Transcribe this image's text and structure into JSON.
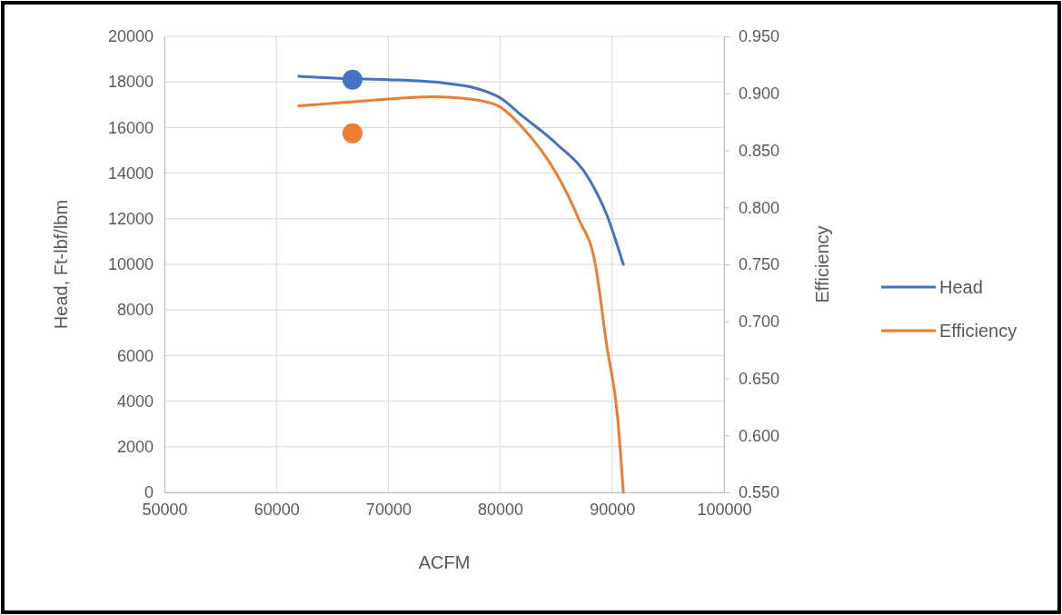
{
  "chart_data": {
    "type": "line",
    "xlabel": "ACFM",
    "ylabel": "Head, Ft-lbf/lbm",
    "y2label": "Efficiency",
    "xlim": [
      50000,
      100000
    ],
    "xticks": [
      50000,
      60000,
      70000,
      80000,
      90000,
      100000
    ],
    "ylim": [
      0,
      20000
    ],
    "yticks": [
      0,
      2000,
      4000,
      6000,
      8000,
      10000,
      12000,
      14000,
      16000,
      18000,
      20000
    ],
    "y2lim": [
      0.55,
      0.95
    ],
    "y2ticks": [
      {
        "value": 0.55,
        "label": "0.550"
      },
      {
        "value": 0.6,
        "label": "0.600"
      },
      {
        "value": 0.65,
        "label": "0.650"
      },
      {
        "value": 0.7,
        "label": "0.700"
      },
      {
        "value": 0.75,
        "label": "0.750"
      },
      {
        "value": 0.8,
        "label": "0.800"
      },
      {
        "value": 0.85,
        "label": "0.850"
      },
      {
        "value": 0.9,
        "label": "0.900"
      },
      {
        "value": 0.95,
        "label": "0.950"
      }
    ],
    "grid": true,
    "legend": "right",
    "marker": "none",
    "line_style": "solid",
    "series": [
      {
        "name": "Head",
        "color": "#4472c4",
        "x": [
          62000,
          66000,
          70000,
          75000,
          78000,
          80000,
          82000,
          85000,
          88000,
          89500,
          91000
        ],
        "values": [
          18250,
          18150,
          18100,
          17950,
          17700,
          17300,
          16500,
          15300,
          13700,
          12200,
          10000
        ]
      },
      {
        "name": "Efficiency",
        "color": "#ed7d31",
        "axis": "y2",
        "x": [
          62000,
          66000,
          70000,
          74000,
          78000,
          80000,
          82000,
          85000,
          87000,
          88500,
          89500,
          90500,
          91000
        ],
        "values": [
          0.889,
          0.892,
          0.895,
          0.897,
          0.894,
          0.888,
          0.87,
          0.83,
          0.79,
          0.75,
          0.68,
          0.615,
          0.55
        ]
      },
      {
        "type": "scatter",
        "color": "#4472c4",
        "marker": "circle",
        "x": [
          66800
        ],
        "values": [
          18100
        ]
      },
      {
        "type": "scatter",
        "color": "#ed7d31",
        "marker": "circle",
        "axis": "y2",
        "x": [
          66800
        ],
        "values": [
          0.865
        ]
      }
    ]
  }
}
